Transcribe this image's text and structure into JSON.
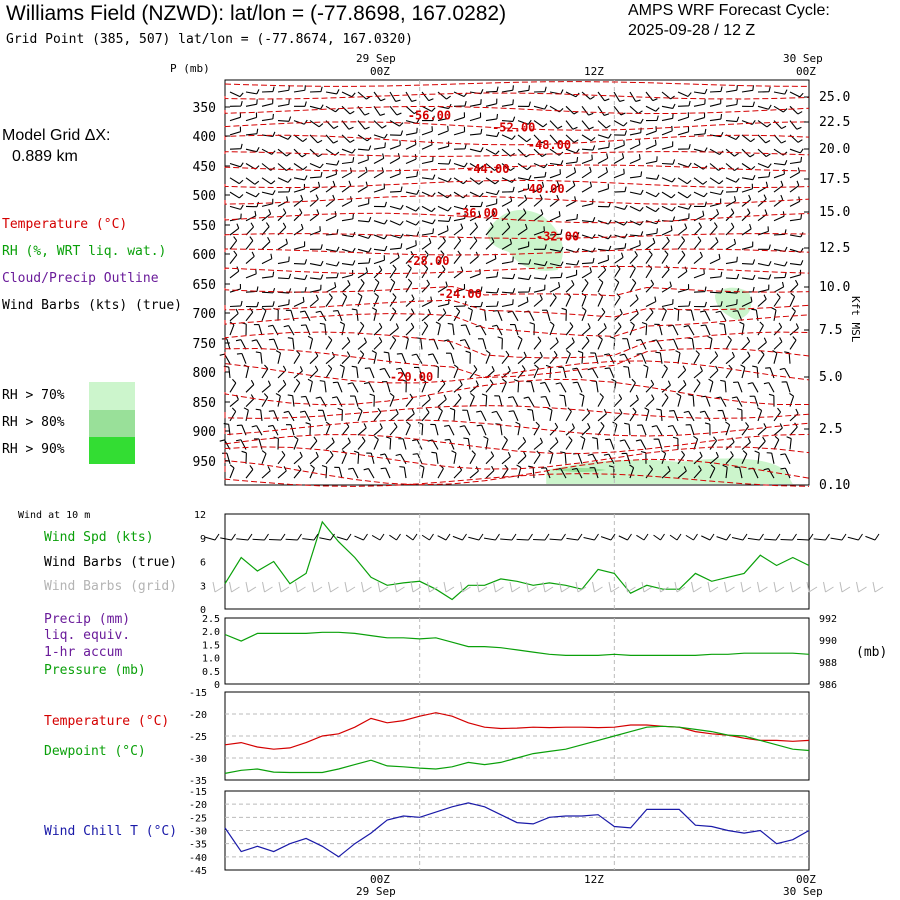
{
  "header": {
    "title": "Williams Field (NZWD):  lat/lon = (-77.8698, 167.0282)",
    "subtitle": "Grid Point (385, 507) lat/lon = (-77.8674, 167.0320)",
    "cycle_line1": "AMPS WRF Forecast Cycle:",
    "cycle_line2": "2025-09-28 / 12  Z"
  },
  "sidebar": {
    "model_grid_label": "Model Grid ΔX:",
    "model_grid_value": "0.889 km",
    "legend_temperature": "Temperature (°C)",
    "legend_rh": "RH (%, WRT liq. wat.)",
    "legend_cloud": "Cloud/Precip Outline",
    "legend_wind": "Wind Barbs (kts) (true)",
    "rh_legend": [
      {
        "label": "RH > 70%",
        "color": "#ccf5cc"
      },
      {
        "label": "RH > 80%",
        "color": "#99e099"
      },
      {
        "label": "RH > 90%",
        "color": "#33dd33"
      }
    ]
  },
  "colors": {
    "temperature": "#d40000",
    "rh": "#0aa00a",
    "purple": "#6a1b9a",
    "gray": "#b4b4b4",
    "blue": "#1a1aa8",
    "gridline": "#bbbbbb"
  },
  "chart_data": [
    {
      "id": "profile",
      "type": "contour",
      "ylabel": "P (mb)",
      "ylabel_right": "Kft MSL",
      "pressure_ticks": [
        350,
        400,
        450,
        500,
        550,
        600,
        650,
        700,
        750,
        800,
        850,
        900,
        950
      ],
      "height_ticks": [
        "25.0",
        "22.5",
        "20.0",
        "17.5",
        "15.0",
        "12.5",
        "10.0",
        "7.5",
        "5.0",
        "2.5",
        "0.10"
      ],
      "time_labels_top": [
        {
          "date": "29 Sep",
          "time": "00Z",
          "hour": 12
        },
        {
          "date": "",
          "time": "12Z",
          "hour": 24
        },
        {
          "date": "30 Sep",
          "time": "00Z",
          "hour": 36
        }
      ],
      "hours_range": [
        0,
        36
      ],
      "temperature_contour_labels": [
        {
          "text": "-56.00",
          "hour": 12.6,
          "p": 365
        },
        {
          "text": "-52.00",
          "hour": 17.8,
          "p": 385
        },
        {
          "text": "-48.00",
          "hour": 20.0,
          "p": 415
        },
        {
          "text": "-44.00",
          "hour": 16.2,
          "p": 455
        },
        {
          "text": "-40.00",
          "hour": 19.6,
          "p": 490
        },
        {
          "text": "-36.00",
          "hour": 15.5,
          "p": 530
        },
        {
          "text": "-32.00",
          "hour": 20.5,
          "p": 570
        },
        {
          "text": "-28.00",
          "hour": 12.5,
          "p": 612
        },
        {
          "text": "-24.00",
          "hour": 14.5,
          "p": 667
        },
        {
          "text": "-20.00",
          "hour": 11.5,
          "p": 808
        }
      ]
    },
    {
      "id": "wind10m",
      "type": "line",
      "title": "Wind at 10 m",
      "series": [
        {
          "name": "Wind Spd (kts)",
          "values": [
            3.2,
            6.5,
            4.8,
            6.0,
            3.2,
            4.5,
            11.0,
            8.5,
            6.5,
            4.0,
            3.0,
            3.3,
            3.5,
            2.5,
            1.2,
            3.0,
            3.0,
            3.8,
            3.5,
            3.0,
            3.3,
            3.0,
            2.5,
            5.0,
            4.5,
            2.0,
            3.0,
            2.5,
            2.5,
            4.5,
            3.5,
            4.0,
            4.5,
            6.8,
            5.5,
            6.5,
            5.5
          ]
        }
      ],
      "legend": [
        "Wind Spd (kts)",
        "Wind Barbs (true)",
        "Wind Barbs (grid)"
      ],
      "ylim": [
        0,
        12
      ],
      "yticks": [
        "12",
        "9",
        "6",
        "3",
        "0"
      ]
    },
    {
      "id": "precip-pressure",
      "type": "line",
      "legend": [
        "Precip (mm)",
        "liq. equiv.",
        "1-hr accum",
        "Pressure (mb)"
      ],
      "series": [
        {
          "name": "Pressure (mb)",
          "values": [
            990.5,
            989.9,
            990.6,
            990.6,
            990.6,
            990.6,
            990.7,
            990.7,
            990.6,
            990.4,
            990.2,
            990.2,
            990.1,
            990.2,
            989.8,
            989.4,
            989.4,
            989.3,
            989.1,
            988.9,
            988.7,
            988.6,
            988.6,
            988.6,
            988.7,
            988.6,
            988.6,
            988.6,
            988.6,
            988.6,
            988.7,
            988.7,
            988.8,
            988.8,
            988.8,
            988.8,
            988.7
          ]
        }
      ],
      "left_ticks": [
        "2.5",
        "2.0",
        "1.5",
        "1.0",
        "0.5",
        "0"
      ],
      "right_ticks": [
        "992",
        "990",
        "988",
        "986"
      ],
      "right_unit": "(mb)",
      "ylim_left": [
        0,
        2.5
      ],
      "ylim_right": [
        986,
        992
      ]
    },
    {
      "id": "temp-dewpoint",
      "type": "line",
      "ylim": [
        -35,
        -15
      ],
      "yticks": [
        "-15",
        "-20",
        "-25",
        "-30",
        "-35"
      ],
      "series": [
        {
          "name": "Temperature (°C)",
          "values": [
            -27.0,
            -26.5,
            -27.5,
            -28.0,
            -27.7,
            -26.5,
            -25.0,
            -24.5,
            -23.0,
            -21.0,
            -22.0,
            -21.5,
            -20.5,
            -19.7,
            -20.5,
            -22.0,
            -23.0,
            -23.3,
            -23.2,
            -23.0,
            -23.1,
            -23.0,
            -23.0,
            -23.1,
            -23.0,
            -22.5,
            -22.5,
            -22.8,
            -23.0,
            -24.0,
            -24.5,
            -24.8,
            -25.5,
            -26.0,
            -26.0,
            -26.2,
            -26.0
          ]
        },
        {
          "name": "Dewpoint (°C)",
          "values": [
            -33.5,
            -32.8,
            -32.5,
            -33.2,
            -33.3,
            -33.3,
            -33.3,
            -32.5,
            -31.5,
            -30.5,
            -31.8,
            -32.0,
            -32.3,
            -32.5,
            -32.0,
            -31.0,
            -31.5,
            -31.0,
            -30.0,
            -29.0,
            -28.5,
            -28.0,
            -27.0,
            -26.0,
            -25.0,
            -24.0,
            -23.0,
            -22.8,
            -23.0,
            -23.5,
            -24.0,
            -24.8,
            -25.0,
            -26.0,
            -27.0,
            -28.0,
            -28.3
          ]
        }
      ]
    },
    {
      "id": "windchill",
      "type": "line",
      "ylim": [
        -45,
        -15
      ],
      "yticks": [
        "-15",
        "-20",
        "-25",
        "-30",
        "-35",
        "-40",
        "-45"
      ],
      "series": [
        {
          "name": "Wind Chill T (°C)",
          "values": [
            -29.0,
            -38.0,
            -36.0,
            -38.0,
            -35.0,
            -33.0,
            -36.0,
            -40.0,
            -35.0,
            -31.0,
            -26.0,
            -24.5,
            -25.0,
            -23.0,
            -21.0,
            -19.5,
            -21.0,
            -24.0,
            -27.0,
            -27.5,
            -25.0,
            -24.5,
            -24.5,
            -24.0,
            -28.5,
            -29.0,
            -22.0,
            -22.0,
            -22.0,
            -28.0,
            -28.5,
            -30.0,
            -31.0,
            -30.0,
            -35.0,
            -33.5,
            -30.0
          ]
        }
      ],
      "bottom_time_labels": [
        {
          "time": "00Z",
          "date": "29 Sep"
        },
        {
          "time": "12Z",
          "date": ""
        },
        {
          "time": "00Z",
          "date": "30 Sep"
        }
      ]
    }
  ]
}
